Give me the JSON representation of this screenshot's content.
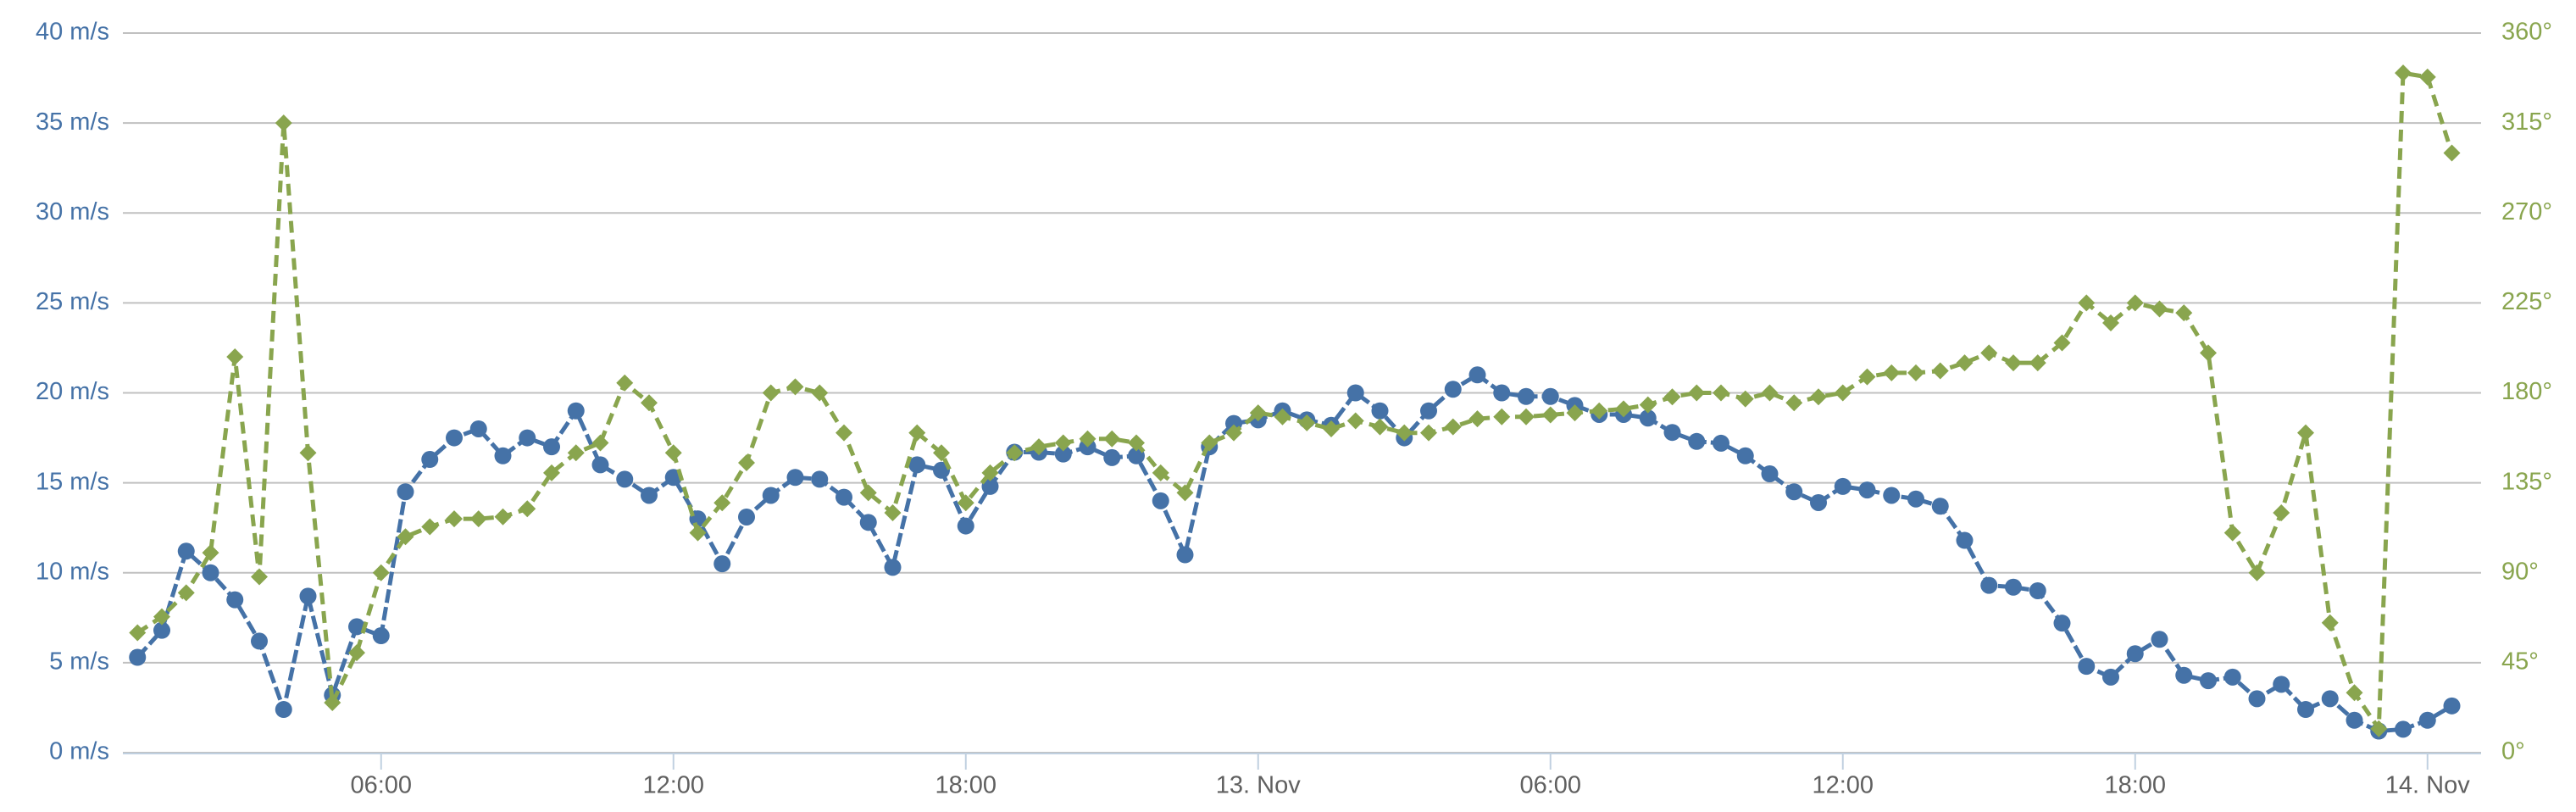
{
  "chart_data": {
    "type": "line",
    "x": [
      1,
      1.5,
      2,
      2.5,
      3,
      3.5,
      4,
      4.5,
      5,
      5.5,
      6,
      6.5,
      7,
      7.5,
      8,
      8.5,
      9,
      9.5,
      10,
      10.5,
      11,
      11.5,
      12,
      12.5,
      13,
      13.5,
      14,
      14.5,
      15,
      15.5,
      16,
      16.5,
      17,
      17.5,
      18,
      18.5,
      19,
      19.5,
      20,
      20.5,
      21,
      21.5,
      22,
      22.5,
      23,
      23.5,
      24,
      24.5,
      25,
      25.5,
      26,
      26.5,
      27,
      27.5,
      28,
      28.5,
      29,
      29.5,
      30,
      30.5,
      31,
      31.5,
      32,
      32.5,
      33,
      33.5,
      34,
      34.5,
      35,
      35.5,
      36,
      36.5,
      37,
      37.5,
      38,
      38.5,
      39,
      39.5,
      40,
      40.5,
      41,
      41.5,
      42,
      42.5,
      43,
      43.5,
      44,
      44.5,
      45,
      45.5,
      46,
      46.5,
      47,
      47.5,
      48,
      48.5
    ],
    "xlim": [
      0.7,
      49.1
    ],
    "xticks": [
      {
        "value": 6,
        "label": "06:00"
      },
      {
        "value": 12,
        "label": "12:00"
      },
      {
        "value": 18,
        "label": "18:00"
      },
      {
        "value": 24,
        "label": "13. Nov"
      },
      {
        "value": 30,
        "label": "06:00"
      },
      {
        "value": 36,
        "label": "12:00"
      },
      {
        "value": 42,
        "label": "18:00"
      },
      {
        "value": 48,
        "label": "14. Nov"
      }
    ],
    "ylim": [
      0,
      40
    ],
    "yticks": [
      {
        "value": 0,
        "label": "0 m/s"
      },
      {
        "value": 5,
        "label": "5 m/s"
      },
      {
        "value": 10,
        "label": "10 m/s"
      },
      {
        "value": 15,
        "label": "15 m/s"
      },
      {
        "value": 20,
        "label": "20 m/s"
      },
      {
        "value": 25,
        "label": "25 m/s"
      },
      {
        "value": 30,
        "label": "30 m/s"
      },
      {
        "value": 35,
        "label": "35 m/s"
      },
      {
        "value": 40,
        "label": "40 m/s"
      }
    ],
    "y2lim": [
      0,
      360
    ],
    "y2ticks": [
      {
        "value": 0,
        "label": "0°"
      },
      {
        "value": 45,
        "label": "45°"
      },
      {
        "value": 90,
        "label": "90°"
      },
      {
        "value": 135,
        "label": "135°"
      },
      {
        "value": 180,
        "label": "180°"
      },
      {
        "value": 225,
        "label": "225°"
      },
      {
        "value": 270,
        "label": "270°"
      },
      {
        "value": 315,
        "label": "315°"
      },
      {
        "value": 360,
        "label": "360°"
      }
    ],
    "grid": true,
    "series": [
      {
        "color": "#4572a7",
        "marker": "circle",
        "axis": "y",
        "values": [
          5.3,
          6.8,
          11.2,
          10.0,
          8.5,
          6.2,
          2.4,
          8.7,
          3.2,
          7.0,
          6.5,
          14.5,
          16.3,
          17.5,
          18.0,
          16.5,
          17.5,
          17.0,
          19.0,
          16.0,
          15.2,
          14.3,
          15.3,
          13.0,
          10.5,
          13.1,
          14.3,
          15.3,
          15.2,
          14.2,
          12.8,
          10.3,
          16.0,
          15.7,
          12.6,
          14.8,
          16.7,
          16.7,
          16.6,
          17.0,
          16.4,
          16.5,
          14.0,
          11.0,
          17.0,
          18.3,
          18.5,
          19.0,
          18.5,
          18.2,
          20.0,
          19.0,
          17.5,
          19.0,
          20.2,
          21.0,
          20.0,
          19.8,
          19.8,
          19.3,
          18.8,
          18.8,
          18.6,
          17.8,
          17.3,
          17.2,
          16.5,
          15.5,
          14.5,
          13.9,
          14.8,
          14.6,
          14.3,
          14.1,
          13.7,
          11.8,
          9.3,
          9.2,
          9.0,
          7.2,
          4.8,
          4.2,
          5.5,
          6.3,
          4.3,
          4.0,
          4.2,
          3.0,
          3.8,
          2.4,
          3.0,
          1.8,
          1.2,
          1.3,
          1.8,
          2.6
        ]
      },
      {
        "color": "#89a54e",
        "marker": "diamond",
        "axis": "y2",
        "values": [
          60,
          68,
          80,
          100,
          198,
          88,
          315,
          150,
          25,
          50,
          90,
          108,
          113,
          117,
          117,
          118,
          122,
          140,
          150,
          155,
          185,
          175,
          150,
          110,
          125,
          145,
          180,
          183,
          180,
          160,
          130,
          120,
          160,
          150,
          125,
          140,
          150,
          153,
          155,
          157,
          157,
          155,
          140,
          130,
          155,
          160,
          170,
          168,
          165,
          162,
          166,
          163,
          160,
          160,
          163,
          167,
          168,
          168,
          169,
          170,
          171,
          172,
          174,
          178,
          180,
          180,
          177,
          180,
          175,
          178,
          180,
          188,
          190,
          190,
          191,
          195,
          200,
          195,
          195,
          205,
          225,
          215,
          225,
          222,
          220,
          200,
          110,
          90,
          120,
          160,
          65,
          30,
          12,
          340,
          338,
          300
        ]
      }
    ]
  }
}
